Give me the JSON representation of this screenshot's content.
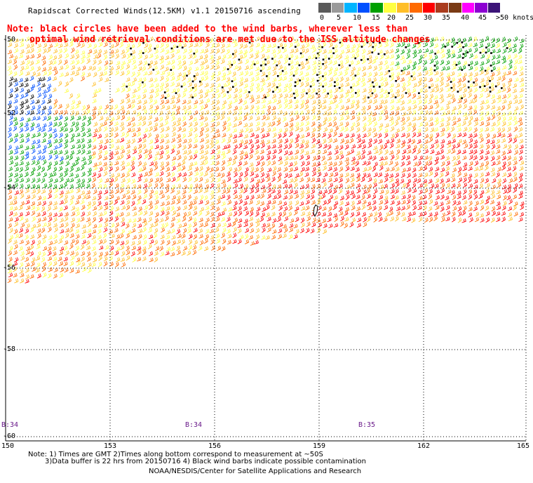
{
  "title": "Rapidscat Corrected Winds(12.5KM) v1.1 20150716 ascending",
  "note_line1": "Note: black circles have been added to the wind barbs, wherever less than",
  "note_line2": "optimal wind retrieval conditions are met due to the ISS altitude changes",
  "legend": {
    "labels": [
      "0",
      "5",
      "10",
      "15",
      "20",
      "25",
      "30",
      "35",
      "40",
      "45",
      ">50 knots"
    ],
    "colors": [
      "#5a5a5a",
      "#9a9a9a",
      "#00b4ff",
      "#0050ff",
      "#00a000",
      "#ffff40",
      "#ffbe28",
      "#ff6a00",
      "#ff0000",
      "#aa3c1e",
      "#7a3a14",
      "#ff00ff",
      "#8c00d2",
      "#3c1478"
    ]
  },
  "lat_labels": [
    "-50",
    "-52",
    "-54",
    "-56",
    "-58",
    "-60"
  ],
  "lon_labels": [
    "150",
    "153",
    "156",
    "159",
    "162",
    "165"
  ],
  "time_labels": [
    "B:34",
    "B:34",
    "B:35"
  ],
  "footer": {
    "line1": "Note: 1) Times are GMT 2)Times along bottom correspond to measurement at ~50S",
    "line2": "3)Data buffer is 22 hrs from 20150716 4) Black wind barbs indicate possible contamination",
    "line3": "NOAA/NESDIS/Center for Satellite Applications and Research"
  }
}
